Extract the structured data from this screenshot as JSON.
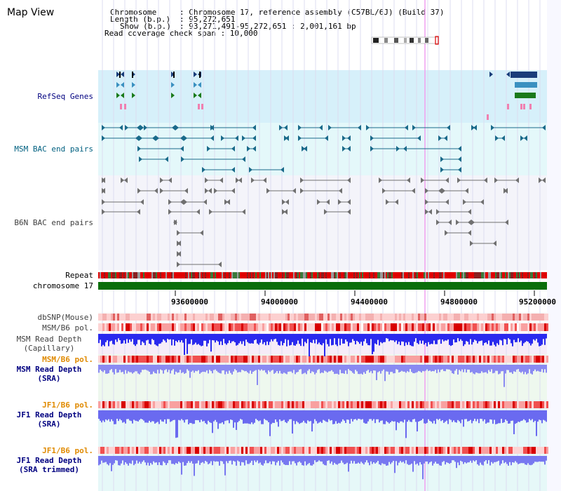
{
  "view_title": "Map View",
  "info": {
    "chromosome_label": "Chromosome",
    "chromosome_value": ": Chromosome 17, reference assembly (C57BL/6J) (Build 37)",
    "length_label": "Length (b.p.)",
    "length_value": ": 95,272,651",
    "show_label": "Show (b.p.)",
    "show_value": ": 93,271,491-95,272,651 : 2,001,161 bp",
    "read_coverage_line": "Read coverage check span : 10,000"
  },
  "tracks": {
    "refseq_genes": "RefSeq Genes",
    "msm_bac": "MSM BAC end pairs",
    "b6n_bac": "B6N BAC end pairs",
    "repeat": "Repeat",
    "chromosome": "chromosome 17",
    "dbsnp": "dbSNP(Mouse)",
    "msm_b6_pol_1": "MSM/B6 pol.",
    "msm_read_depth_cap_1": "MSM Read Depth",
    "msm_read_depth_cap_2": "(Capillary)",
    "msm_b6_pol_2": "MSM/B6 pol.",
    "msm_read_depth_sra_1": "MSM Read Depth",
    "msm_read_depth_sra_2": "(SRA)",
    "jf1_b6_pol_1": "JF1/B6 pol.",
    "jf1_read_depth_sra_1": "JF1 Read Depth",
    "jf1_read_depth_sra_2": "(SRA)",
    "jf1_b6_pol_2": "JF1/B6 pol.",
    "jf1_read_depth_trim_1": "JF1 Read Depth",
    "jf1_read_depth_trim_2": "(SRA trimmed)"
  },
  "axis_ticks": [
    "93600000",
    "94000000",
    "94400000",
    "94800000",
    "95200000"
  ],
  "colors": {
    "refseq_bg": "#d6f0fa",
    "msm_bac_bg": "#e4f8fa",
    "b6n_bac_bg": "#f4f4fa",
    "chromosome_bar": "#0a6e0a",
    "navy_label": "#000080",
    "teal_label": "#006080",
    "orange_label": "#e08a00",
    "depth_blue": "#2020ee",
    "depth_lightblue": "#7a7af0",
    "cursor_line": "#f0a0f0"
  }
}
